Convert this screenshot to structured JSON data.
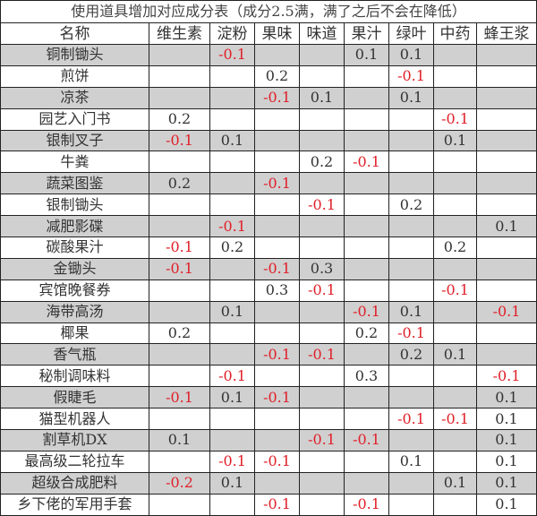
{
  "title": "使用道具增加对应成分表（成分2.5满，满了之后不会在降低）",
  "columns": [
    "名称",
    "维生素",
    "淀粉",
    "果味",
    "味道",
    "果汁",
    "绿叶",
    "中药",
    "蜂王浆"
  ],
  "negative_color": "#e0202a",
  "row_shading": "alternating gray (#d0d0d0) / white, starting gray",
  "rows": [
    {
      "name": "铜制锄头",
      "values": [
        "",
        "-0.1",
        "",
        "",
        "0.1",
        "0.1",
        "",
        ""
      ]
    },
    {
      "name": "煎饼",
      "values": [
        "",
        "",
        "0.2",
        "",
        "",
        "-0.1",
        "",
        ""
      ]
    },
    {
      "name": "凉茶",
      "values": [
        "",
        "",
        "-0.1",
        "0.1",
        "",
        "0.1",
        "",
        ""
      ]
    },
    {
      "name": "园艺入门书",
      "values": [
        "0.2",
        "",
        "",
        "",
        "",
        "",
        "-0.1",
        ""
      ]
    },
    {
      "name": "银制叉子",
      "values": [
        "-0.1",
        "0.1",
        "",
        "",
        "",
        "",
        "0.1",
        ""
      ]
    },
    {
      "name": "牛粪",
      "values": [
        "",
        "",
        "",
        "0.2",
        "-0.1",
        "",
        "",
        ""
      ]
    },
    {
      "name": "蔬菜图鉴",
      "values": [
        "0.2",
        "",
        "-0.1",
        "",
        "",
        "",
        "",
        ""
      ]
    },
    {
      "name": "银制锄头",
      "values": [
        "",
        "",
        "",
        "-0.1",
        "",
        "0.2",
        "",
        ""
      ]
    },
    {
      "name": "减肥影碟",
      "values": [
        "",
        "-0.1",
        "",
        "",
        "",
        "",
        "",
        "0.1"
      ]
    },
    {
      "name": "碳酸果汁",
      "values": [
        "-0.1",
        "0.2",
        "",
        "",
        "",
        "",
        "0.2",
        ""
      ]
    },
    {
      "name": "金锄头",
      "values": [
        "-0.1",
        "",
        "-0.1",
        "0.3",
        "",
        "",
        "",
        ""
      ]
    },
    {
      "name": "宾馆晚餐券",
      "values": [
        "",
        "",
        "0.3",
        "-0.1",
        "",
        "",
        "-0.1",
        ""
      ]
    },
    {
      "name": "海带高汤",
      "values": [
        "",
        "0.1",
        "",
        "",
        "-0.1",
        "0.1",
        "",
        "-0.1"
      ]
    },
    {
      "name": "椰果",
      "values": [
        "0.2",
        "",
        "",
        "",
        "0.2",
        "-0.1",
        "",
        ""
      ]
    },
    {
      "name": "香气瓶",
      "values": [
        "",
        "",
        "-0.1",
        "-0.1",
        "",
        "0.2",
        "0.1",
        ""
      ]
    },
    {
      "name": "秘制调味料",
      "values": [
        "",
        "-0.1",
        "",
        "",
        "0.3",
        "",
        "",
        "-0.1"
      ]
    },
    {
      "name": "假睫毛",
      "values": [
        "-0.1",
        "0.1",
        "-0.1",
        "",
        "",
        "",
        "",
        "0.1"
      ]
    },
    {
      "name": "猫型机器人",
      "values": [
        "",
        "",
        "",
        "",
        "",
        "-0.1",
        "-0.1",
        "0.1"
      ]
    },
    {
      "name": "割草机DX",
      "values": [
        "0.1",
        "",
        "",
        "-0.1",
        "-0.1",
        "",
        "",
        "0.1"
      ]
    },
    {
      "name": "最高级二轮拉车",
      "values": [
        "",
        "-0.1",
        "-0.1",
        "",
        "",
        "0.1",
        "",
        "0.1"
      ]
    },
    {
      "name": "超级合成肥料",
      "values": [
        "-0.2",
        "0.1",
        "",
        "",
        "",
        "",
        "0.1",
        "0.1"
      ]
    },
    {
      "name": "乡下佬的军用手套",
      "values": [
        "",
        "",
        "-0.1",
        "",
        "-0.1",
        "",
        "",
        "0.1"
      ]
    }
  ]
}
